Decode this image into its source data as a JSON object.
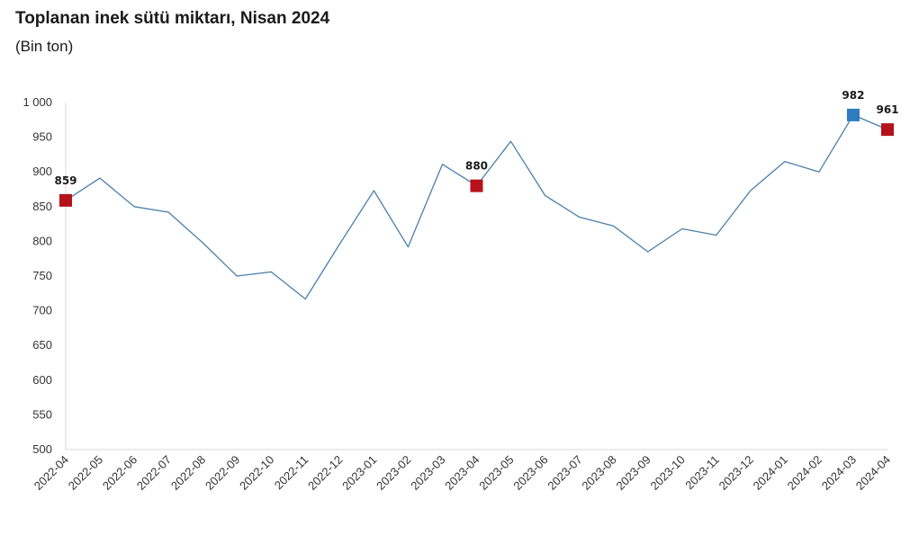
{
  "header": {
    "title": "Toplanan inek sütü miktarı, Nisan 2024",
    "subtitle": "(Bin ton)"
  },
  "chart_data": {
    "type": "line",
    "title": "Toplanan inek sütü miktarı, Nisan 2024",
    "subtitle": "(Bin ton)",
    "xlabel": "",
    "ylabel": "",
    "ylim": [
      500,
      1000
    ],
    "yticks": [
      500,
      550,
      600,
      650,
      700,
      750,
      800,
      850,
      900,
      950,
      1000
    ],
    "ytick_labels": [
      "500",
      "550",
      "600",
      "650",
      "700",
      "750",
      "800",
      "850",
      "900",
      "950",
      "1 000"
    ],
    "grid": false,
    "legend": "none",
    "categories": [
      "2022-04",
      "2022-05",
      "2022-06",
      "2022-07",
      "2022-08",
      "2022-09",
      "2022-10",
      "2022-11",
      "2022-12",
      "2023-01",
      "2023-02",
      "2023-03",
      "2023-04",
      "2023-05",
      "2023-06",
      "2023-07",
      "2023-08",
      "2023-09",
      "2023-10",
      "2023-11",
      "2023-12",
      "2024-01",
      "2024-02",
      "2024-03",
      "2024-04"
    ],
    "series": [
      {
        "values": [
          859,
          891,
          850,
          842,
          798,
          750,
          756,
          717,
          796,
          873,
          792,
          911,
          880,
          944,
          866,
          835,
          822,
          785,
          818,
          809,
          873,
          915,
          900,
          982,
          961
        ],
        "color": "#4a7fab"
      }
    ],
    "highlights": [
      {
        "index": 0,
        "label": "859",
        "color": "#b5121b"
      },
      {
        "index": 12,
        "label": "880",
        "color": "#b5121b"
      },
      {
        "index": 23,
        "label": "982",
        "color": "#2e7bbf"
      },
      {
        "index": 24,
        "label": "961",
        "color": "#b5121b"
      }
    ]
  }
}
